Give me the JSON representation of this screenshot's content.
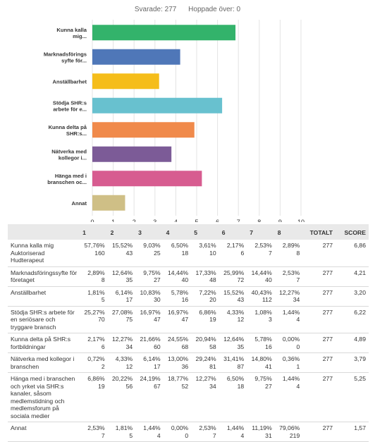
{
  "stats": {
    "answered": "Svarade: 277",
    "skipped": "Hoppade över: 0"
  },
  "colors": {
    "accent": "#2e75b6"
  },
  "chart_data": {
    "type": "bar",
    "orientation": "horizontal",
    "title": "",
    "xlabel": "",
    "ylabel": "",
    "xlim": [
      0,
      10
    ],
    "x_ticks": [
      "0",
      "1",
      "2",
      "3",
      "4",
      "5",
      "6",
      "7",
      "8",
      "9",
      "10"
    ],
    "grid": true,
    "categories": [
      [
        "Kunna kalla",
        "mig..."
      ],
      [
        "Marknadsförings",
        "syfte för..."
      ],
      [
        "Anställbarhet"
      ],
      [
        "Stödja SHR:s",
        "arbete för e..."
      ],
      [
        "Kunna delta på",
        "SHR:s..."
      ],
      [
        "Nätverka med",
        "kollegor i..."
      ],
      [
        "Hänga med i",
        "branschen oc..."
      ],
      [
        "Annat"
      ]
    ],
    "values": [
      6.86,
      4.21,
      3.2,
      6.22,
      4.89,
      3.79,
      5.25,
      1.57
    ],
    "bar_colors": [
      "#33b36b",
      "#4f77b8",
      "#f5bd1a",
      "#68c1cf",
      "#f08a4b",
      "#7c5b97",
      "#d75c90",
      "#cfbf86"
    ]
  },
  "table": {
    "headers": [
      "",
      "1",
      "2",
      "3",
      "4",
      "5",
      "6",
      "7",
      "8",
      "TOTALT",
      "SCORE"
    ],
    "rows": [
      {
        "label": "Kunna kalla mig Auktoriserad Hudterapeut",
        "cells": [
          [
            "57,76%",
            "160"
          ],
          [
            "15,52%",
            "43"
          ],
          [
            "9,03%",
            "25"
          ],
          [
            "6,50%",
            "18"
          ],
          [
            "3,61%",
            "10"
          ],
          [
            "2,17%",
            "6"
          ],
          [
            "2,53%",
            "7"
          ],
          [
            "2,89%",
            "8"
          ]
        ],
        "total": "277",
        "score": "6,86"
      },
      {
        "label": "Marknadsföringssyfte för företaget",
        "cells": [
          [
            "2,89%",
            "8"
          ],
          [
            "12,64%",
            "35"
          ],
          [
            "9,75%",
            "27"
          ],
          [
            "14,44%",
            "40"
          ],
          [
            "17,33%",
            "48"
          ],
          [
            "25,99%",
            "72"
          ],
          [
            "14,44%",
            "40"
          ],
          [
            "2,53%",
            "7"
          ]
        ],
        "total": "277",
        "score": "4,21"
      },
      {
        "label": "Anställbarhet",
        "cells": [
          [
            "1,81%",
            "5"
          ],
          [
            "6,14%",
            "17"
          ],
          [
            "10,83%",
            "30"
          ],
          [
            "5,78%",
            "16"
          ],
          [
            "7,22%",
            "20"
          ],
          [
            "15,52%",
            "43"
          ],
          [
            "40,43%",
            "112"
          ],
          [
            "12,27%",
            "34"
          ]
        ],
        "total": "277",
        "score": "3,20"
      },
      {
        "label": "Stödja SHR:s arbete för en seriösare och tryggare bransch",
        "cells": [
          [
            "25,27%",
            "70"
          ],
          [
            "27,08%",
            "75"
          ],
          [
            "16,97%",
            "47"
          ],
          [
            "16,97%",
            "47"
          ],
          [
            "6,86%",
            "19"
          ],
          [
            "4,33%",
            "12"
          ],
          [
            "1,08%",
            "3"
          ],
          [
            "1,44%",
            "4"
          ]
        ],
        "total": "277",
        "score": "6,22"
      },
      {
        "label": "Kunna delta på SHR:s fortbildningar",
        "cells": [
          [
            "2,17%",
            "6"
          ],
          [
            "12,27%",
            "34"
          ],
          [
            "21,66%",
            "60"
          ],
          [
            "24,55%",
            "68"
          ],
          [
            "20,94%",
            "58"
          ],
          [
            "12,64%",
            "35"
          ],
          [
            "5,78%",
            "16"
          ],
          [
            "0,00%",
            "0"
          ]
        ],
        "total": "277",
        "score": "4,89"
      },
      {
        "label": "Nätverka med kollegor i branschen",
        "cells": [
          [
            "0,72%",
            "2"
          ],
          [
            "4,33%",
            "12"
          ],
          [
            "6,14%",
            "17"
          ],
          [
            "13,00%",
            "36"
          ],
          [
            "29,24%",
            "81"
          ],
          [
            "31,41%",
            "87"
          ],
          [
            "14,80%",
            "41"
          ],
          [
            "0,36%",
            "1"
          ]
        ],
        "total": "277",
        "score": "3,79"
      },
      {
        "label": "Hänga med i branschen och yrket via SHR:s kanaler, såsom medlemstidning och medlemsforum på sociala medier",
        "cells": [
          [
            "6,86%",
            "19"
          ],
          [
            "20,22%",
            "56"
          ],
          [
            "24,19%",
            "67"
          ],
          [
            "18,77%",
            "52"
          ],
          [
            "12,27%",
            "34"
          ],
          [
            "6,50%",
            "18"
          ],
          [
            "9,75%",
            "27"
          ],
          [
            "1,44%",
            "4"
          ]
        ],
        "total": "277",
        "score": "5,25"
      },
      {
        "label": "Annat",
        "cells": [
          [
            "2,53%",
            "7"
          ],
          [
            "1,81%",
            "5"
          ],
          [
            "1,44%",
            "4"
          ],
          [
            "0,00%",
            "0"
          ],
          [
            "2,53%",
            "7"
          ],
          [
            "1,44%",
            "4"
          ],
          [
            "11,19%",
            "31"
          ],
          [
            "79,06%",
            "219"
          ]
        ],
        "total": "277",
        "score": "1,57"
      }
    ]
  }
}
